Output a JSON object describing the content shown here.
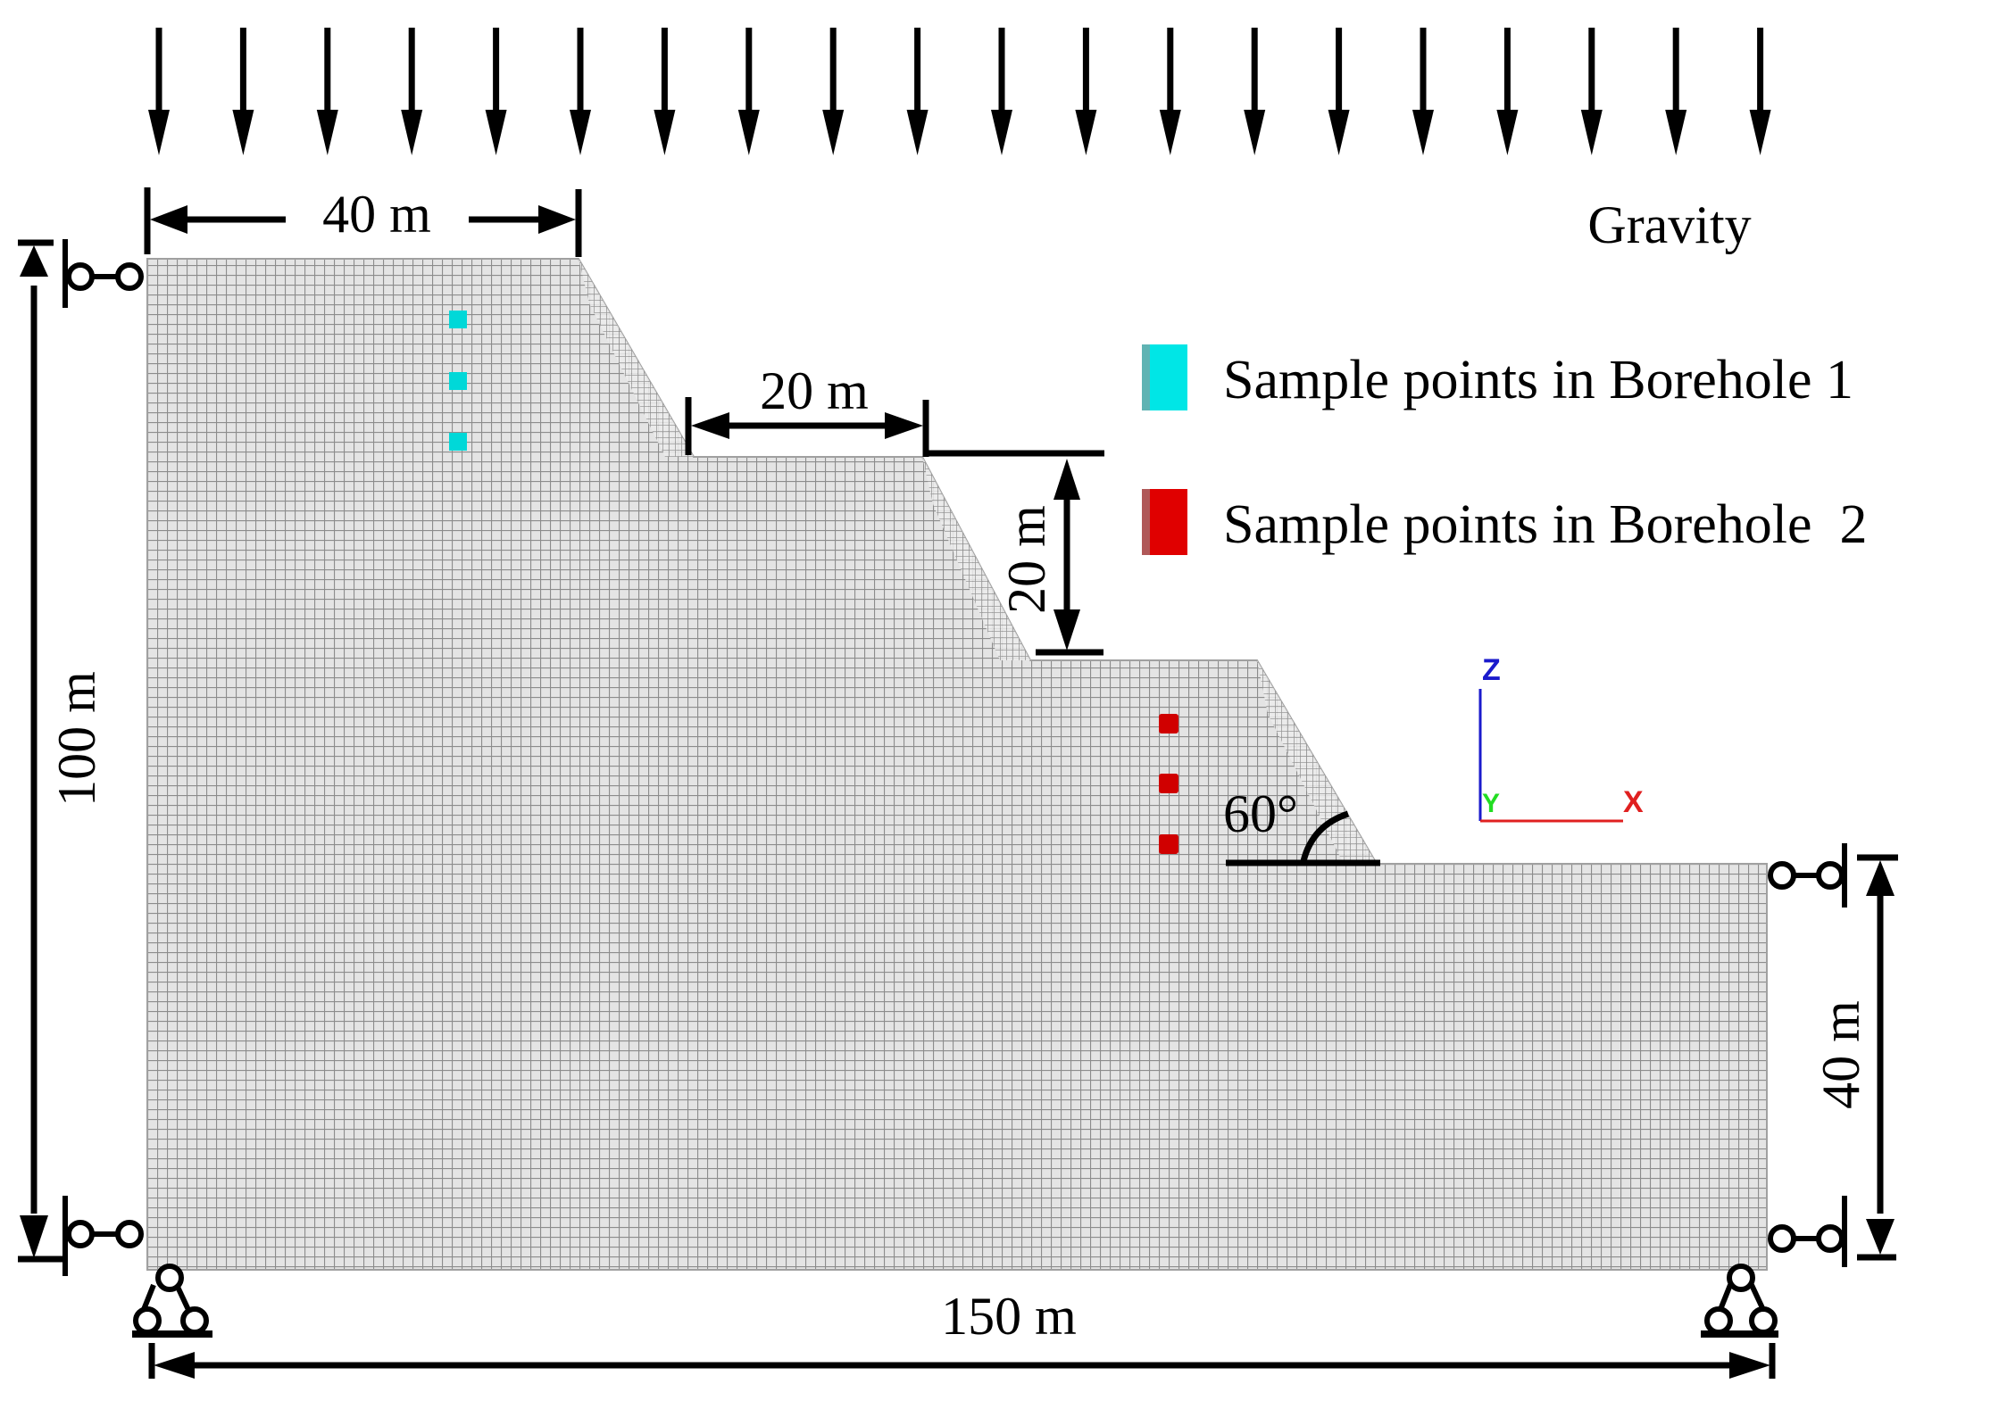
{
  "figure": {
    "load_label": "Gravity",
    "dimensions": {
      "top_width": "40 m",
      "bench_width": "20 m",
      "bench_height": "20 m",
      "total_height": "100 m",
      "toe_height": "40 m",
      "total_width": "150 m",
      "slope_angle": "60°"
    },
    "legend": [
      {
        "label": "Sample points in Borehole 1",
        "color": "#00e6e6",
        "shade": "#5fb3b3"
      },
      {
        "label": "Sample points in Borehole  2",
        "color": "#e00000",
        "shade": "#b05858"
      }
    ],
    "axes": {
      "z": "Z",
      "y": "Y",
      "x": "X",
      "z_color": "#1a1acc",
      "y_color": "#22dd22",
      "x_color": "#e02020"
    },
    "mesh": {
      "fill": "#d8d8d8",
      "line": "#8c8c8c"
    }
  },
  "chart_data": {
    "type": "diagram",
    "title": "Slope model geometry, mesh and boundary conditions",
    "geometry_m": {
      "total_width": 150,
      "total_height": 100,
      "toe_height": 40,
      "crest_width": 40,
      "bench_width": 20,
      "bench_height": 20,
      "slope_angle_deg": 60
    },
    "sample_points": {
      "borehole_1": 3,
      "borehole_2": 3
    },
    "loads": "Gravity (downward arrows, 20 shown)",
    "supports": [
      "left side rollers (top & bottom)",
      "right side rollers (top & bottom)",
      "bottom pinned supports at both corners"
    ]
  }
}
